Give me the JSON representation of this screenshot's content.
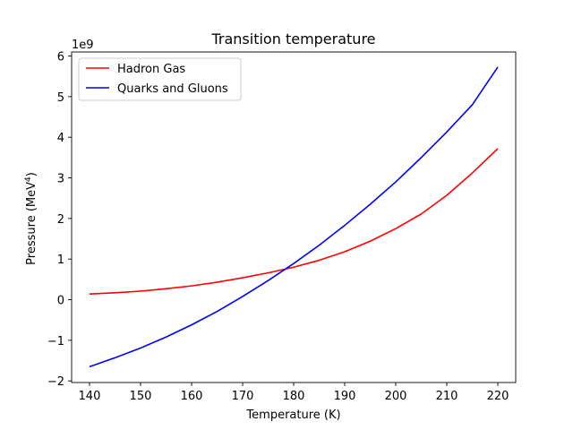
{
  "chart_data": {
    "type": "line",
    "title": "Transition temperature",
    "xlabel": "Temperature (K)",
    "ylabel_base": "Pressure (MeV",
    "ylabel_sup": "4",
    "ylabel_end": ")",
    "y_offset_label": "1e9",
    "xlim": [
      136.5,
      223.5
    ],
    "ylim": [
      -2.04,
      6.1
    ],
    "xticks": [
      140,
      150,
      160,
      170,
      180,
      190,
      200,
      210,
      220
    ],
    "yticks": [
      -2,
      -1,
      0,
      1,
      2,
      3,
      4,
      5,
      6
    ],
    "ytick_labels": [
      "−2",
      "−1",
      "0",
      "1",
      "2",
      "3",
      "4",
      "5",
      "6"
    ],
    "legend_position": "top-left",
    "grid": false,
    "x": [
      140,
      145,
      150,
      155,
      160,
      165,
      170,
      175,
      180,
      185,
      190,
      195,
      200,
      205,
      210,
      215,
      220
    ],
    "series": [
      {
        "name": "Hadron Gas",
        "color": "#ff0000",
        "values": [
          0.14,
          0.17,
          0.21,
          0.27,
          0.34,
          0.43,
          0.54,
          0.66,
          0.8,
          0.97,
          1.18,
          1.44,
          1.75,
          2.11,
          2.57,
          3.12,
          3.72
        ]
      },
      {
        "name": "Quarks and Gluons",
        "color": "#0000ff",
        "values": [
          -1.65,
          -1.43,
          -1.19,
          -0.92,
          -0.62,
          -0.29,
          0.08,
          0.47,
          0.89,
          1.34,
          1.83,
          2.35,
          2.9,
          3.5,
          4.13,
          4.8,
          5.73
        ]
      }
    ]
  }
}
